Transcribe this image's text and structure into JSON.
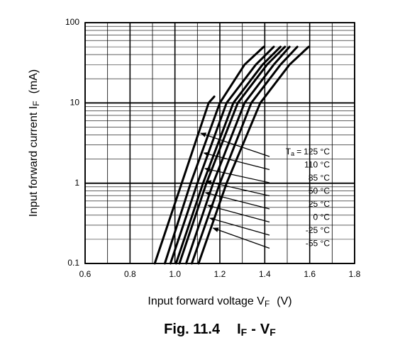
{
  "chart_data": {
    "type": "line",
    "log_y": true,
    "grid": true,
    "x_label": {
      "text": "Input forward voltage  V",
      "sub": "F",
      "unit": "(V)"
    },
    "y_label": {
      "text": "Input forward current  I",
      "sub": "F",
      "unit": "(mA)"
    },
    "caption": {
      "fig": "Fig. 11.4",
      "left": "I",
      "left_sub": "F",
      "sep": "-",
      "right": "V",
      "right_sub": "F"
    },
    "label_prefix": "T",
    "label_prefix_sub": "a",
    "label_eq": "=",
    "xlim": [
      0.6,
      1.8
    ],
    "xticks": [
      0.6,
      0.8,
      {
        "value": 1,
        "label": "1.0"
      },
      1.2,
      1.4,
      1.6,
      1.8
    ],
    "ylim": [
      0.1,
      100
    ],
    "yticks": [
      0.1,
      1,
      10,
      100
    ],
    "series": [
      {
        "name": "125 °C",
        "color": "#000000",
        "x": [
          0.91,
          1.03,
          1.15,
          1.175
        ],
        "values": [
          0.1,
          1,
          10,
          12
        ]
      },
      {
        "name": "110 °C",
        "color": "#000000",
        "x": [
          0.955,
          1.07,
          1.2,
          1.31,
          1.395
        ],
        "values": [
          0.1,
          1,
          10,
          30,
          50
        ]
      },
      {
        "name": "85 °C",
        "color": "#000000",
        "x": [
          0.98,
          1.1,
          1.23,
          1.36,
          1.44
        ],
        "values": [
          0.1,
          1,
          10,
          30,
          50
        ]
      },
      {
        "name": "50 °C",
        "color": "#000000",
        "x": [
          1.005,
          1.125,
          1.26,
          1.39,
          1.47
        ],
        "values": [
          0.1,
          1,
          10,
          30,
          50
        ]
      },
      {
        "name": "25 °C",
        "color": "#000000",
        "x": [
          1.02,
          1.14,
          1.28,
          1.41,
          1.49
        ],
        "values": [
          0.1,
          1,
          10,
          30,
          50
        ]
      },
      {
        "name": "0 °C",
        "color": "#000000",
        "x": [
          1.05,
          1.17,
          1.31,
          1.44,
          1.51
        ],
        "values": [
          0.1,
          1,
          10,
          30,
          50
        ]
      },
      {
        "name": "-25 °C",
        "color": "#000000",
        "x": [
          1.075,
          1.2,
          1.34,
          1.47,
          1.545
        ],
        "values": [
          0.1,
          1,
          10,
          30,
          50
        ]
      },
      {
        "name": "-55 °C",
        "color": "#000000",
        "x": [
          1.105,
          1.23,
          1.38,
          1.51,
          1.595
        ],
        "values": [
          0.1,
          1,
          10,
          30,
          50
        ]
      }
    ]
  }
}
